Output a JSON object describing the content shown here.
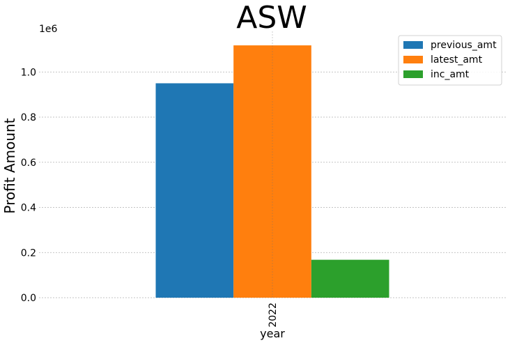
{
  "chart_data": {
    "type": "bar",
    "title": "ASW",
    "xlabel": "year",
    "ylabel": "Profit Amount",
    "y_offset_label": "1e6",
    "categories": [
      "2022"
    ],
    "series": [
      {
        "name": "previous_amt",
        "color": "#1f77b4",
        "values": [
          950000
        ]
      },
      {
        "name": "latest_amt",
        "color": "#ff7f0e",
        "values": [
          1118000
        ]
      },
      {
        "name": "inc_amt",
        "color": "#2ca02c",
        "values": [
          168000
        ]
      }
    ],
    "ylim": [
      0,
      1180000
    ],
    "yticks": [
      0,
      200000,
      400000,
      600000,
      800000,
      1000000
    ],
    "ytick_labels": [
      "0.0",
      "0.2",
      "0.4",
      "0.6",
      "0.8",
      "1.0"
    ],
    "grid": true,
    "legend_position": "top-right"
  }
}
